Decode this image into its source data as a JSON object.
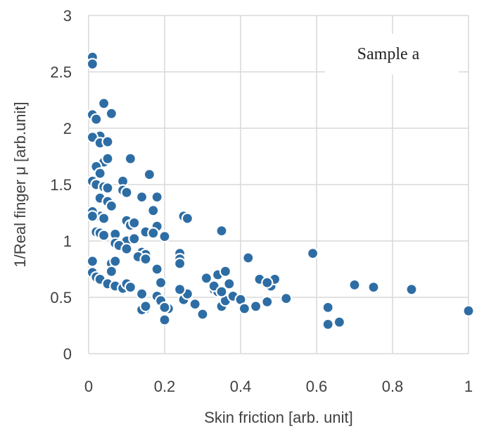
{
  "chart_data": {
    "type": "scatter",
    "title": "",
    "xlabel": "Skin friction [arb. unit]",
    "ylabel": "1/Real finger μ  [arb.unit]",
    "xlim": [
      0,
      1
    ],
    "ylim": [
      0,
      3
    ],
    "x_ticks": [
      "0",
      "0.2",
      "0.4",
      "0.6",
      "0.8",
      "1"
    ],
    "y_ticks": [
      "0",
      "0.5",
      "1",
      "1.5",
      "2",
      "2.5",
      "3"
    ],
    "grid": true,
    "legend": "none",
    "annotation": "Sample a",
    "marker_color": "#2e6da4",
    "marker_edge": "#ffffff",
    "series": [
      {
        "x": [
          0.01,
          0.01,
          0.04,
          0.06,
          0.01,
          0.02,
          0.03,
          0.01,
          0.03,
          0.05,
          0.04,
          0.05,
          0.11,
          0.02,
          0.03,
          0.01,
          0.02,
          0.04,
          0.05,
          0.09,
          0.09,
          0.1,
          0.16,
          0.14,
          0.14,
          0.18,
          0.03,
          0.03,
          0.05,
          0.06,
          0.17,
          0.01,
          0.04,
          0.1,
          0.11,
          0.12,
          0.18,
          0.01,
          0.02,
          0.03,
          0.04,
          0.07,
          0.1,
          0.12,
          0.15,
          0.17,
          0.2,
          0.25,
          0.26,
          0.07,
          0.08,
          0.1,
          0.14,
          0.15,
          0.13,
          0.24,
          0.24,
          0.24,
          0.35,
          0.42,
          0.01,
          0.06,
          0.07,
          0.15,
          0.18,
          0.06,
          0.01,
          0.02,
          0.03,
          0.05,
          0.07,
          0.09,
          0.1,
          0.11,
          0.14,
          0.15,
          0.18,
          0.19,
          0.2,
          0.25,
          0.26,
          0.28,
          0.3,
          0.33,
          0.34,
          0.35,
          0.36,
          0.37,
          0.38,
          0.4,
          0.45,
          0.47,
          0.48,
          0.49,
          0.52,
          0.59,
          0.31,
          0.34,
          0.33,
          0.36,
          0.41,
          0.44,
          0.47,
          0.35,
          0.24,
          0.19,
          0.2,
          0.21,
          0.14,
          0.15,
          0.2,
          0.63,
          0.63,
          0.66,
          0.7,
          0.75,
          0.85,
          1.0
        ],
        "y": [
          2.63,
          2.57,
          2.22,
          2.13,
          2.12,
          2.08,
          1.93,
          1.92,
          1.87,
          1.88,
          1.7,
          1.73,
          1.73,
          1.66,
          1.6,
          1.53,
          1.5,
          1.48,
          1.47,
          1.53,
          1.45,
          1.43,
          1.59,
          1.4,
          1.39,
          1.39,
          1.38,
          1.22,
          1.35,
          1.31,
          1.27,
          1.26,
          1.2,
          1.18,
          1.14,
          1.16,
          1.13,
          1.22,
          1.08,
          1.07,
          1.05,
          1.06,
          1.0,
          1.02,
          1.08,
          1.07,
          1.04,
          1.22,
          1.2,
          0.98,
          0.96,
          0.93,
          0.9,
          0.88,
          0.86,
          0.89,
          0.84,
          0.8,
          1.09,
          0.85,
          0.82,
          0.8,
          0.82,
          0.84,
          0.75,
          0.73,
          0.72,
          0.68,
          0.66,
          0.62,
          0.6,
          0.58,
          0.62,
          0.59,
          0.53,
          0.4,
          0.51,
          0.47,
          0.4,
          0.48,
          0.53,
          0.44,
          0.35,
          0.57,
          0.55,
          0.42,
          0.47,
          0.62,
          0.51,
          0.48,
          0.66,
          0.46,
          0.6,
          0.66,
          0.49,
          0.89,
          0.67,
          0.7,
          0.6,
          0.73,
          0.4,
          0.42,
          0.63,
          0.55,
          0.57,
          0.63,
          0.3,
          0.4,
          0.39,
          0.42,
          0.41,
          0.41,
          0.26,
          0.28,
          0.61,
          0.59,
          0.57,
          0.38
        ]
      }
    ]
  }
}
